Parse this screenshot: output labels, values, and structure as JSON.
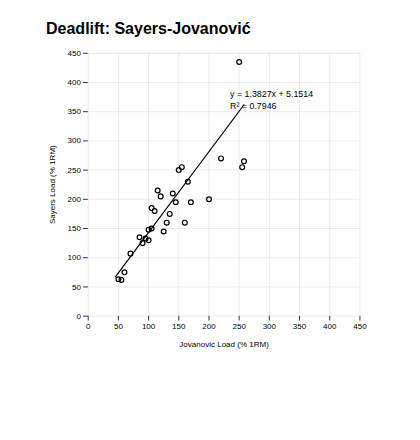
{
  "chart_data": {
    "type": "scatter",
    "title": "Deadlift: Sayers-Jovanović",
    "xlabel": "Jovanović Load (% 1RM)",
    "ylabel": "Sayers Load (% 1RM)",
    "series": [
      {
        "type": "scatter",
        "x": [
          50,
          55,
          60,
          70,
          85,
          90,
          95,
          100,
          100,
          105,
          105,
          110,
          115,
          120,
          125,
          130,
          135,
          140,
          145,
          150,
          155,
          160,
          165,
          170,
          200,
          220,
          250,
          255,
          258
        ],
        "values": [
          63,
          62,
          75,
          107,
          135,
          125,
          133,
          130,
          148,
          150,
          185,
          180,
          215,
          205,
          145,
          160,
          175,
          210,
          195,
          250,
          255,
          160,
          230,
          195,
          200,
          270,
          435,
          255,
          265
        ]
      },
      {
        "type": "line",
        "x": [
          45,
          258
        ],
        "values": [
          67.3729,
          361.888
        ]
      }
    ],
    "xlim": [
      0,
      450
    ],
    "ylim": [
      0,
      450
    ],
    "xticks": [
      0,
      50,
      100,
      150,
      200,
      250,
      300,
      350,
      400,
      450
    ],
    "yticks": [
      0,
      50,
      100,
      150,
      200,
      250,
      300,
      350,
      400,
      450
    ],
    "grid": true,
    "annotations": [
      {
        "text": [
          "y = 1.3827x + 5.1514",
          "R² = 0.7946"
        ],
        "x": 235,
        "y": 390
      }
    ]
  }
}
